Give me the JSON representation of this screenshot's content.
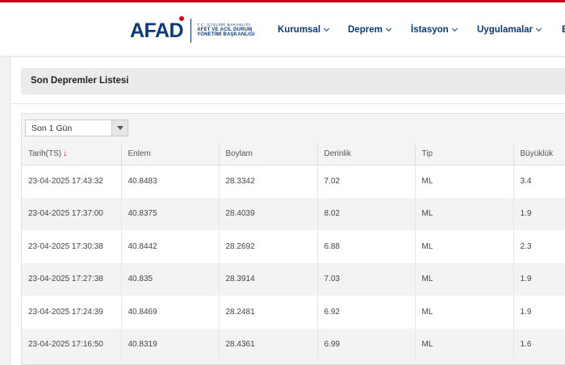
{
  "header": {
    "logo": {
      "mark": "AFAD",
      "line1": "T.C. İÇİŞLERİ BAKANLIĞI",
      "line2": "AFET VE ACİL DURUM",
      "line3": "YÖNETİMİ BAŞKANLIĞI"
    },
    "nav": [
      {
        "label": "Kurumsal"
      },
      {
        "label": "Deprem"
      },
      {
        "label": "İstasyon"
      },
      {
        "label": "Uygulamalar"
      },
      {
        "label": "E"
      }
    ]
  },
  "page": {
    "title": "Son Depremler Listesi",
    "filter": {
      "selected": "Son 1 Gün"
    }
  },
  "table": {
    "columns": [
      "Tarih(TS)",
      "Enlem",
      "Boylam",
      "Derinlik",
      "Tip",
      "Büyüklük"
    ],
    "sort_indicator": "↓",
    "rows": [
      [
        "23-04-2025 17:43:32",
        "40.8483",
        "28.3342",
        "7.02",
        "ML",
        "3.4"
      ],
      [
        "23-04-2025 17:37:00",
        "40.8375",
        "28.4039",
        "8.02",
        "ML",
        "1.9"
      ],
      [
        "23-04-2025 17:30:38",
        "40.8442",
        "28.2692",
        "6.88",
        "ML",
        "2.3"
      ],
      [
        "23-04-2025 17:27:38",
        "40.835",
        "28.3914",
        "7.03",
        "ML",
        "1.9"
      ],
      [
        "23-04-2025 17:24:39",
        "40.8469",
        "28.2481",
        "6.92",
        "ML",
        "1.9"
      ],
      [
        "23-04-2025 17:16:50",
        "40.8319",
        "28.4361",
        "6.99",
        "ML",
        "1.6"
      ]
    ]
  },
  "colors": {
    "brand_blue": "#0b3a7a",
    "brand_red": "#d0021b"
  }
}
